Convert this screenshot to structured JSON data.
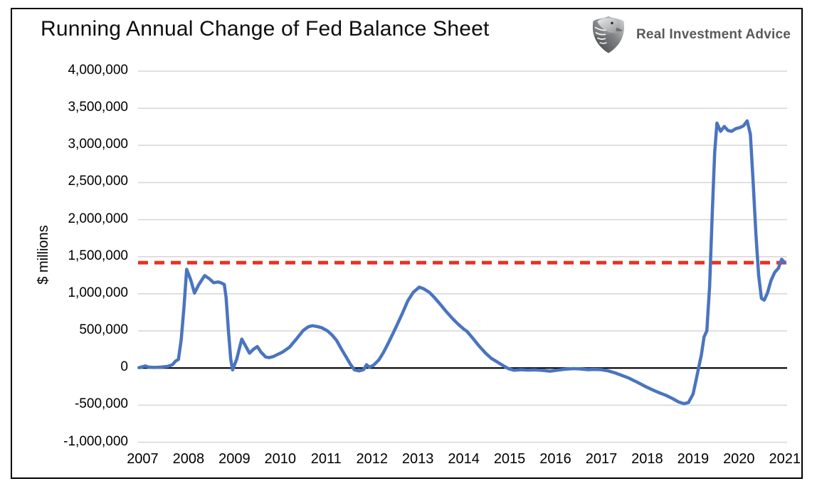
{
  "header": {
    "title": "Running Annual Change of Fed Balance Sheet",
    "logo_text": "Real Investment Advice"
  },
  "chart_data": {
    "type": "line",
    "title": "Running Annual Change of Fed Balance Sheet",
    "xlabel": "",
    "ylabel": "$ millions",
    "units": "$ millions",
    "grid": "horizontal",
    "legend_position": "none",
    "xlim": [
      2006.9,
      2021.05
    ],
    "ylim": [
      -1000000,
      4000000
    ],
    "yticks": [
      {
        "value": 4000000,
        "label": "4,000,000"
      },
      {
        "value": 3500000,
        "label": "3,500,000"
      },
      {
        "value": 3000000,
        "label": "3,000,000"
      },
      {
        "value": 2500000,
        "label": "2,500,000"
      },
      {
        "value": 2000000,
        "label": "2,000,000"
      },
      {
        "value": 1500000,
        "label": "1,500,000"
      },
      {
        "value": 1000000,
        "label": "1,000,000"
      },
      {
        "value": 500000,
        "label": "500,000"
      },
      {
        "value": 0,
        "label": "0"
      },
      {
        "value": -500000,
        "label": "-500,000"
      },
      {
        "value": -1000000,
        "label": "-1,000,000"
      }
    ],
    "xticks": [
      {
        "value": 2007,
        "label": "2007"
      },
      {
        "value": 2008,
        "label": "2008"
      },
      {
        "value": 2009,
        "label": "2009"
      },
      {
        "value": 2010,
        "label": "2010"
      },
      {
        "value": 2011,
        "label": "2011"
      },
      {
        "value": 2012,
        "label": "2012"
      },
      {
        "value": 2013,
        "label": "2013"
      },
      {
        "value": 2014,
        "label": "2014"
      },
      {
        "value": 2015,
        "label": "2015"
      },
      {
        "value": 2016,
        "label": "2016"
      },
      {
        "value": 2017,
        "label": "2017"
      },
      {
        "value": 2018,
        "label": "2018"
      },
      {
        "value": 2019,
        "label": "2019"
      },
      {
        "value": 2020,
        "label": "2020"
      },
      {
        "value": 2021,
        "label": "2021"
      }
    ],
    "reference_line": {
      "value": 1420000,
      "style": "dashed",
      "color": "#e63125"
    },
    "zero_line": {
      "value": 0,
      "color": "#000000"
    },
    "colors": {
      "series": "#4a74c0",
      "reference": "#e63125",
      "grid": "#d6d6d6",
      "zero_line": "#000000"
    },
    "series": [
      {
        "name": "Running Annual Change of Fed Balance Sheet",
        "color": "#4a74c0",
        "style": "solid",
        "points": [
          [
            2006.92,
            5000
          ],
          [
            2007.06,
            28000
          ],
          [
            2007.13,
            12000
          ],
          [
            2007.25,
            8000
          ],
          [
            2007.4,
            12000
          ],
          [
            2007.55,
            22000
          ],
          [
            2007.65,
            45000
          ],
          [
            2007.72,
            95000
          ],
          [
            2007.78,
            115000
          ],
          [
            2007.84,
            380000
          ],
          [
            2007.9,
            820000
          ],
          [
            2007.96,
            1330000
          ],
          [
            2008.05,
            1185000
          ],
          [
            2008.13,
            1010000
          ],
          [
            2008.22,
            1120000
          ],
          [
            2008.35,
            1245000
          ],
          [
            2008.45,
            1205000
          ],
          [
            2008.55,
            1150000
          ],
          [
            2008.65,
            1160000
          ],
          [
            2008.72,
            1145000
          ],
          [
            2008.78,
            1125000
          ],
          [
            2008.82,
            950000
          ],
          [
            2008.87,
            500000
          ],
          [
            2008.92,
            120000
          ],
          [
            2008.96,
            -25000
          ],
          [
            2009.05,
            120000
          ],
          [
            2009.16,
            390000
          ],
          [
            2009.25,
            290000
          ],
          [
            2009.33,
            200000
          ],
          [
            2009.42,
            255000
          ],
          [
            2009.5,
            290000
          ],
          [
            2009.58,
            215000
          ],
          [
            2009.68,
            150000
          ],
          [
            2009.76,
            140000
          ],
          [
            2009.85,
            155000
          ],
          [
            2009.95,
            185000
          ],
          [
            2010.05,
            215000
          ],
          [
            2010.2,
            280000
          ],
          [
            2010.35,
            390000
          ],
          [
            2010.5,
            505000
          ],
          [
            2010.61,
            555000
          ],
          [
            2010.7,
            570000
          ],
          [
            2010.8,
            560000
          ],
          [
            2010.9,
            545000
          ],
          [
            2011.03,
            500000
          ],
          [
            2011.13,
            445000
          ],
          [
            2011.23,
            370000
          ],
          [
            2011.33,
            260000
          ],
          [
            2011.43,
            155000
          ],
          [
            2011.53,
            50000
          ],
          [
            2011.62,
            -25000
          ],
          [
            2011.72,
            -38000
          ],
          [
            2011.82,
            -20000
          ],
          [
            2011.88,
            45000
          ],
          [
            2011.94,
            12000
          ],
          [
            2012.03,
            35000
          ],
          [
            2012.15,
            110000
          ],
          [
            2012.25,
            210000
          ],
          [
            2012.35,
            330000
          ],
          [
            2012.5,
            520000
          ],
          [
            2012.65,
            720000
          ],
          [
            2012.78,
            905000
          ],
          [
            2012.9,
            1020000
          ],
          [
            2013.03,
            1090000
          ],
          [
            2013.12,
            1070000
          ],
          [
            2013.25,
            1020000
          ],
          [
            2013.36,
            950000
          ],
          [
            2013.5,
            850000
          ],
          [
            2013.62,
            760000
          ],
          [
            2013.75,
            670000
          ],
          [
            2013.88,
            590000
          ],
          [
            2014.0,
            525000
          ],
          [
            2014.07,
            495000
          ],
          [
            2014.2,
            400000
          ],
          [
            2014.33,
            300000
          ],
          [
            2014.47,
            205000
          ],
          [
            2014.6,
            130000
          ],
          [
            2014.75,
            75000
          ],
          [
            2014.88,
            25000
          ],
          [
            2014.98,
            -10000
          ],
          [
            2015.1,
            -30000
          ],
          [
            2015.25,
            -22000
          ],
          [
            2015.4,
            -28000
          ],
          [
            2015.55,
            -25000
          ],
          [
            2015.72,
            -32000
          ],
          [
            2015.88,
            -42000
          ],
          [
            2016.05,
            -28000
          ],
          [
            2016.22,
            -15000
          ],
          [
            2016.4,
            -8000
          ],
          [
            2016.55,
            -12000
          ],
          [
            2016.7,
            -22000
          ],
          [
            2016.85,
            -18000
          ],
          [
            2017.0,
            -22000
          ],
          [
            2017.15,
            -38000
          ],
          [
            2017.3,
            -65000
          ],
          [
            2017.45,
            -100000
          ],
          [
            2017.6,
            -135000
          ],
          [
            2017.78,
            -190000
          ],
          [
            2017.95,
            -245000
          ],
          [
            2018.1,
            -290000
          ],
          [
            2018.25,
            -330000
          ],
          [
            2018.4,
            -365000
          ],
          [
            2018.55,
            -410000
          ],
          [
            2018.68,
            -455000
          ],
          [
            2018.8,
            -480000
          ],
          [
            2018.9,
            -465000
          ],
          [
            2019.0,
            -350000
          ],
          [
            2019.08,
            -120000
          ],
          [
            2019.14,
            60000
          ],
          [
            2019.18,
            175000
          ],
          [
            2019.24,
            420000
          ],
          [
            2019.3,
            500000
          ],
          [
            2019.36,
            1100000
          ],
          [
            2019.42,
            2100000
          ],
          [
            2019.47,
            2900000
          ],
          [
            2019.52,
            3300000
          ],
          [
            2019.6,
            3190000
          ],
          [
            2019.68,
            3255000
          ],
          [
            2019.76,
            3200000
          ],
          [
            2019.84,
            3190000
          ],
          [
            2019.93,
            3225000
          ],
          [
            2020.02,
            3240000
          ],
          [
            2020.1,
            3265000
          ],
          [
            2020.18,
            3330000
          ],
          [
            2020.25,
            3150000
          ],
          [
            2020.31,
            2500000
          ],
          [
            2020.37,
            1800000
          ],
          [
            2020.43,
            1250000
          ],
          [
            2020.49,
            940000
          ],
          [
            2020.55,
            915000
          ],
          [
            2020.62,
            1010000
          ],
          [
            2020.7,
            1180000
          ],
          [
            2020.78,
            1290000
          ],
          [
            2020.86,
            1345000
          ],
          [
            2020.93,
            1465000
          ],
          [
            2021.0,
            1420000
          ]
        ]
      }
    ]
  }
}
